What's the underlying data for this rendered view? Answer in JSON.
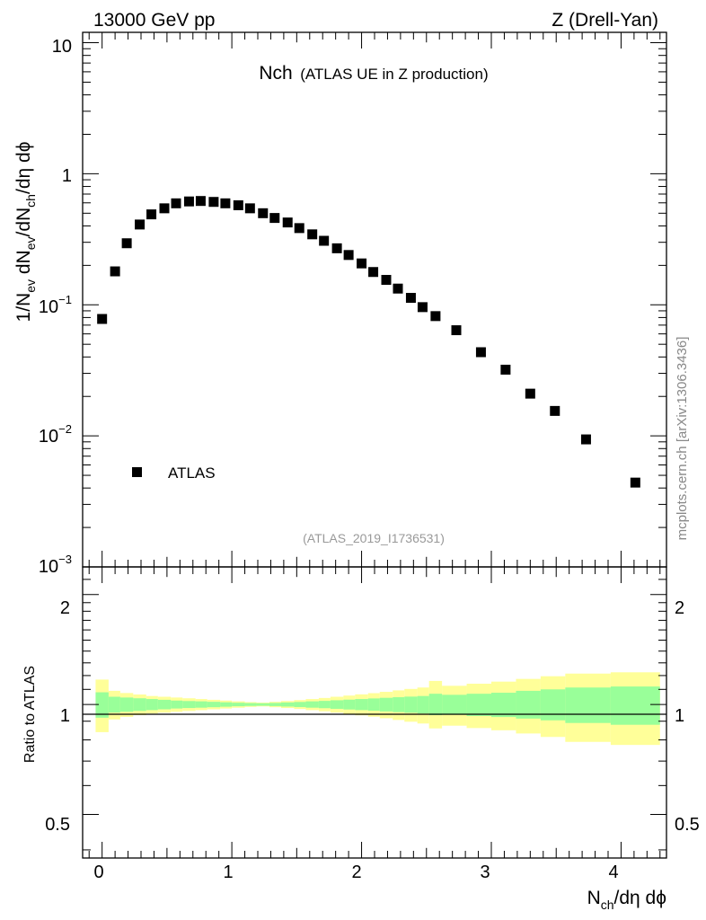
{
  "header": {
    "left": "13000 GeV pp",
    "right": "Z (Drell-Yan)"
  },
  "main_panel": {
    "title_main": "Nch",
    "title_sub": "(ATLAS UE in Z production)",
    "ylabel_parts": [
      "1/N",
      "ev",
      " dN",
      "ev",
      "/dN",
      "ch",
      "/dη dϕ"
    ],
    "ytick_labels": {
      "1e1": "10",
      "1e0": "1",
      "1e-1": [
        "10",
        "−1"
      ],
      "1e-2": [
        "10",
        "−2"
      ],
      "1e-3": [
        "10",
        "−3"
      ]
    },
    "legend_label": "ATLAS",
    "analysis_id": "(ATLAS_2019_I1736531)"
  },
  "ratio_panel": {
    "ylabel": "Ratio to ATLAS",
    "ytick_labels": [
      "0.5",
      "1",
      "2"
    ],
    "xtick_labels": [
      "0",
      "1",
      "2",
      "3",
      "4"
    ],
    "xlabel_parts": [
      "N",
      "ch",
      "/dη dϕ"
    ]
  },
  "side_label": "mcplots.cern.ch [arXiv:1306.3436]",
  "colors": {
    "marker": "#000000",
    "band_inner": "#99ff99",
    "band_outer": "#ffff99",
    "text_grey": "#999999"
  },
  "chart_data": {
    "type": "scatter",
    "xlabel": "N_ch/dη dϕ",
    "ylabel": "1/N_ev dN_ev/dN_ch/dη dϕ",
    "xlim": [
      -0.15,
      4.35
    ],
    "ylim": [
      0.001,
      12
    ],
    "yscale": "log",
    "series": [
      {
        "name": "ATLAS",
        "points": [
          {
            "x": 0.0,
            "y": 0.078
          },
          {
            "x": 0.1,
            "y": 0.18
          },
          {
            "x": 0.19,
            "y": 0.295
          },
          {
            "x": 0.29,
            "y": 0.41
          },
          {
            "x": 0.38,
            "y": 0.49
          },
          {
            "x": 0.48,
            "y": 0.545
          },
          {
            "x": 0.57,
            "y": 0.595
          },
          {
            "x": 0.67,
            "y": 0.615
          },
          {
            "x": 0.76,
            "y": 0.62
          },
          {
            "x": 0.86,
            "y": 0.61
          },
          {
            "x": 0.95,
            "y": 0.595
          },
          {
            "x": 1.05,
            "y": 0.575
          },
          {
            "x": 1.14,
            "y": 0.545
          },
          {
            "x": 1.24,
            "y": 0.5
          },
          {
            "x": 1.33,
            "y": 0.46
          },
          {
            "x": 1.43,
            "y": 0.425
          },
          {
            "x": 1.52,
            "y": 0.385
          },
          {
            "x": 1.62,
            "y": 0.345
          },
          {
            "x": 1.71,
            "y": 0.308
          },
          {
            "x": 1.81,
            "y": 0.27
          },
          {
            "x": 1.9,
            "y": 0.24
          },
          {
            "x": 2.0,
            "y": 0.207
          },
          {
            "x": 2.09,
            "y": 0.178
          },
          {
            "x": 2.19,
            "y": 0.155
          },
          {
            "x": 2.28,
            "y": 0.133
          },
          {
            "x": 2.38,
            "y": 0.113
          },
          {
            "x": 2.47,
            "y": 0.096
          },
          {
            "x": 2.57,
            "y": 0.082
          },
          {
            "x": 2.73,
            "y": 0.064
          },
          {
            "x": 2.92,
            "y": 0.0435
          },
          {
            "x": 3.11,
            "y": 0.032
          },
          {
            "x": 3.3,
            "y": 0.021
          },
          {
            "x": 3.49,
            "y": 0.0155
          },
          {
            "x": 3.73,
            "y": 0.0094
          },
          {
            "x": 4.11,
            "y": 0.0044
          }
        ]
      }
    ],
    "ratio": {
      "ylabel": "Ratio to ATLAS",
      "ylim": [
        0.38,
        2.38
      ],
      "yscale": "log",
      "bins": [
        {
          "x0": -0.05,
          "x1": 0.05,
          "inner": [
            0.92,
            1.08
          ],
          "outer": [
            0.84,
            1.17
          ]
        },
        {
          "x0": 0.05,
          "x1": 0.14,
          "inner": [
            0.95,
            1.05
          ],
          "outer": [
            0.91,
            1.09
          ]
        },
        {
          "x0": 0.14,
          "x1": 0.24,
          "inner": [
            0.955,
            1.045
          ],
          "outer": [
            0.925,
            1.075
          ]
        },
        {
          "x0": 0.24,
          "x1": 0.34,
          "inner": [
            0.96,
            1.04
          ],
          "outer": [
            0.935,
            1.065
          ]
        },
        {
          "x0": 0.34,
          "x1": 0.43,
          "inner": [
            0.965,
            1.035
          ],
          "outer": [
            0.945,
            1.055
          ]
        },
        {
          "x0": 0.43,
          "x1": 0.53,
          "inner": [
            0.97,
            1.03
          ],
          "outer": [
            0.95,
            1.05
          ]
        },
        {
          "x0": 0.53,
          "x1": 0.62,
          "inner": [
            0.975,
            1.025
          ],
          "outer": [
            0.955,
            1.045
          ]
        },
        {
          "x0": 0.62,
          "x1": 0.72,
          "inner": [
            0.978,
            1.022
          ],
          "outer": [
            0.96,
            1.04
          ]
        },
        {
          "x0": 0.72,
          "x1": 0.81,
          "inner": [
            0.98,
            1.02
          ],
          "outer": [
            0.965,
            1.035
          ]
        },
        {
          "x0": 0.81,
          "x1": 0.91,
          "inner": [
            0.983,
            1.017
          ],
          "outer": [
            0.97,
            1.03
          ]
        },
        {
          "x0": 0.91,
          "x1": 1.0,
          "inner": [
            0.986,
            1.014
          ],
          "outer": [
            0.975,
            1.025
          ]
        },
        {
          "x0": 1.0,
          "x1": 1.1,
          "inner": [
            0.989,
            1.011
          ],
          "outer": [
            0.98,
            1.02
          ]
        },
        {
          "x0": 1.1,
          "x1": 1.19,
          "inner": [
            0.991,
            1.009
          ],
          "outer": [
            0.985,
            1.015
          ]
        },
        {
          "x0": 1.19,
          "x1": 1.29,
          "inner": [
            0.992,
            1.008
          ],
          "outer": [
            0.988,
            1.012
          ]
        },
        {
          "x0": 1.29,
          "x1": 1.38,
          "inner": [
            0.99,
            1.01
          ],
          "outer": [
            0.983,
            1.017
          ]
        },
        {
          "x0": 1.38,
          "x1": 1.48,
          "inner": [
            0.987,
            1.013
          ],
          "outer": [
            0.978,
            1.022
          ]
        },
        {
          "x0": 1.48,
          "x1": 1.57,
          "inner": [
            0.984,
            1.016
          ],
          "outer": [
            0.972,
            1.028
          ]
        },
        {
          "x0": 1.57,
          "x1": 1.67,
          "inner": [
            0.98,
            1.02
          ],
          "outer": [
            0.965,
            1.035
          ]
        },
        {
          "x0": 1.67,
          "x1": 1.76,
          "inner": [
            0.977,
            1.023
          ],
          "outer": [
            0.958,
            1.042
          ]
        },
        {
          "x0": 1.76,
          "x1": 1.86,
          "inner": [
            0.973,
            1.027
          ],
          "outer": [
            0.95,
            1.05
          ]
        },
        {
          "x0": 1.86,
          "x1": 1.95,
          "inner": [
            0.969,
            1.031
          ],
          "outer": [
            0.942,
            1.058
          ]
        },
        {
          "x0": 1.95,
          "x1": 2.05,
          "inner": [
            0.965,
            1.035
          ],
          "outer": [
            0.934,
            1.066
          ]
        },
        {
          "x0": 2.05,
          "x1": 2.14,
          "inner": [
            0.961,
            1.039
          ],
          "outer": [
            0.926,
            1.074
          ]
        },
        {
          "x0": 2.14,
          "x1": 2.24,
          "inner": [
            0.957,
            1.043
          ],
          "outer": [
            0.917,
            1.083
          ]
        },
        {
          "x0": 2.24,
          "x1": 2.33,
          "inner": [
            0.953,
            1.047
          ],
          "outer": [
            0.907,
            1.093
          ]
        },
        {
          "x0": 2.33,
          "x1": 2.43,
          "inner": [
            0.949,
            1.051
          ],
          "outer": [
            0.897,
            1.103
          ]
        },
        {
          "x0": 2.43,
          "x1": 2.52,
          "inner": [
            0.945,
            1.055
          ],
          "outer": [
            0.887,
            1.113
          ]
        },
        {
          "x0": 2.52,
          "x1": 2.62,
          "inner": [
            0.935,
            1.07
          ],
          "outer": [
            0.86,
            1.16
          ]
        },
        {
          "x0": 2.62,
          "x1": 2.81,
          "inner": [
            0.937,
            1.063
          ],
          "outer": [
            0.875,
            1.125
          ]
        },
        {
          "x0": 2.81,
          "x1": 3.0,
          "inner": [
            0.93,
            1.07
          ],
          "outer": [
            0.862,
            1.14
          ]
        },
        {
          "x0": 3.0,
          "x1": 3.19,
          "inner": [
            0.924,
            1.077
          ],
          "outer": [
            0.85,
            1.155
          ]
        },
        {
          "x0": 3.19,
          "x1": 3.38,
          "inner": [
            0.915,
            1.09
          ],
          "outer": [
            0.833,
            1.175
          ]
        },
        {
          "x0": 3.38,
          "x1": 3.57,
          "inner": [
            0.905,
            1.1
          ],
          "outer": [
            0.815,
            1.195
          ]
        },
        {
          "x0": 3.57,
          "x1": 3.92,
          "inner": [
            0.89,
            1.113
          ],
          "outer": [
            0.79,
            1.215
          ]
        },
        {
          "x0": 3.92,
          "x1": 4.3,
          "inner": [
            0.88,
            1.12
          ],
          "outer": [
            0.775,
            1.225
          ]
        }
      ]
    }
  }
}
